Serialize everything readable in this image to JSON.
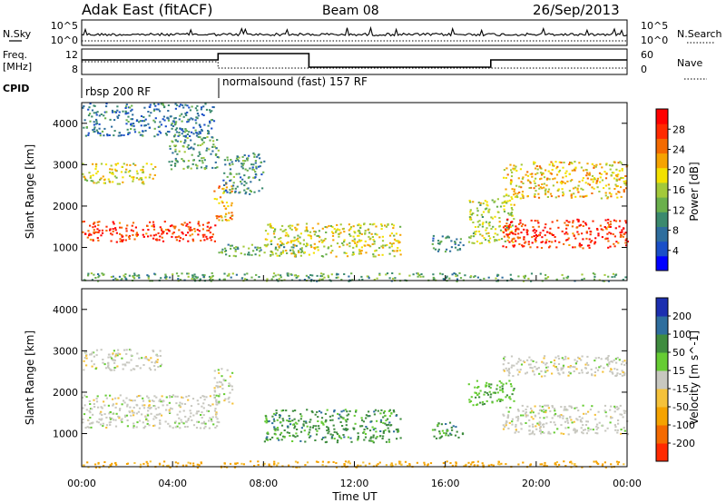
{
  "header": {
    "station": "Adak East (fitACF)",
    "beam": "Beam 08",
    "date": "26/Sep/2013"
  },
  "summary_panel": {
    "left_labels": [
      "N.Sky",
      "Freq.",
      "[MHz]",
      "CPID"
    ],
    "right_labels": [
      "N.Search",
      "Nave"
    ],
    "noise_ticks": [
      "10^5",
      "10^0"
    ],
    "noise_ticks_right": [
      "10^5",
      "10^0"
    ],
    "freq_ticks": [
      "12",
      "8"
    ],
    "nave_ticks": [
      "60",
      "0"
    ],
    "cpid_segments": [
      {
        "label": "rbsp 200 RF",
        "start_hour": 0,
        "end_hour": 6
      },
      {
        "label": "normalsound (fast) 157 RF",
        "start_hour": 6,
        "end_hour": 24
      }
    ],
    "freq_series": [
      {
        "start_hour": 0,
        "end_hour": 6,
        "level": "mid"
      },
      {
        "start_hour": 6,
        "end_hour": 10,
        "level": "high"
      },
      {
        "start_hour": 10,
        "end_hour": 18,
        "level": "low"
      },
      {
        "start_hour": 18,
        "end_hour": 24,
        "level": "mid"
      }
    ]
  },
  "chart_data": [
    {
      "type": "heatmap",
      "panel": "power",
      "ylabel": "Slant Range [km]",
      "ylim": [
        200,
        4500
      ],
      "yticks": [
        1000,
        2000,
        3000,
        4000
      ],
      "colorbar_label": "Power [dB]",
      "colorbar_ticks": [
        "28",
        "24",
        "20",
        "16",
        "12",
        "8",
        "4"
      ],
      "colorbar_range": [
        0,
        32
      ],
      "colors": [
        "#0000ff",
        "#1a4fc8",
        "#2e6e9e",
        "#3b8a6e",
        "#6ab04c",
        "#a3c93a",
        "#f3e100",
        "#f5a300",
        "#f46a00",
        "#ff2a00",
        "#ff0000"
      ],
      "regions": [
        {
          "x": [
            0,
            6
          ],
          "y": [
            1150,
            1650
          ],
          "level": 28
        },
        {
          "x": [
            0,
            3.2
          ],
          "y": [
            2550,
            3050
          ],
          "level": 18
        },
        {
          "x": [
            3.8,
            6
          ],
          "y": [
            2900,
            3700
          ],
          "level": 12
        },
        {
          "x": [
            0,
            5.8
          ],
          "y": [
            3700,
            4500
          ],
          "level": 8
        },
        {
          "x": [
            5.8,
            6.6
          ],
          "y": [
            1650,
            2600
          ],
          "level": 22
        },
        {
          "x": [
            6.2,
            8.0
          ],
          "y": [
            2300,
            3300
          ],
          "level": 10
        },
        {
          "x": [
            6.0,
            9.8
          ],
          "y": [
            800,
            1100
          ],
          "level": 12
        },
        {
          "x": [
            8.0,
            14.0
          ],
          "y": [
            800,
            1600
          ],
          "level": 18
        },
        {
          "x": [
            15.4,
            16.8
          ],
          "y": [
            900,
            1300
          ],
          "level": 10
        },
        {
          "x": [
            17.0,
            19.0
          ],
          "y": [
            1100,
            2200
          ],
          "level": 16
        },
        {
          "x": [
            18.5,
            24
          ],
          "y": [
            1000,
            1700
          ],
          "level": 28
        },
        {
          "x": [
            18.5,
            24
          ],
          "y": [
            2200,
            3100
          ],
          "level": 20
        },
        {
          "x": [
            0,
            24
          ],
          "y": [
            200,
            400
          ],
          "level": 12
        }
      ]
    },
    {
      "type": "heatmap",
      "panel": "velocity",
      "ylabel": "Slant Range [km]",
      "xlabel": "Time UT",
      "ylim": [
        200,
        4500
      ],
      "yticks": [
        1000,
        2000,
        3000,
        4000
      ],
      "xticks": [
        "00:00",
        "04:00",
        "08:00",
        "12:00",
        "16:00",
        "20:00",
        "00:00"
      ],
      "xlim_hours": [
        0,
        24
      ],
      "colorbar_label": "Velocity [m s^-1]",
      "colorbar_ticks": [
        "200",
        "100",
        "50",
        "15",
        "-15",
        "-50",
        "-100",
        "-200"
      ],
      "colors": [
        "#1c2fb0",
        "#2e6e9e",
        "#3f8c3f",
        "#66cc33",
        "#c8c8c0",
        "#f5c23a",
        "#f5a300",
        "#f46a00",
        "#ff2a00"
      ],
      "regions": [
        {
          "x": [
            0,
            6
          ],
          "y": [
            1150,
            1950
          ],
          "velocity": 0
        },
        {
          "x": [
            0,
            3.5
          ],
          "y": [
            2550,
            3050
          ],
          "velocity": 0
        },
        {
          "x": [
            5.8,
            6.6
          ],
          "y": [
            1650,
            2600
          ],
          "velocity": 0
        },
        {
          "x": [
            8.0,
            14.0
          ],
          "y": [
            800,
            1600
          ],
          "velocity": 60
        },
        {
          "x": [
            15.4,
            16.8
          ],
          "y": [
            900,
            1300
          ],
          "velocity": 60
        },
        {
          "x": [
            17.0,
            19.0
          ],
          "y": [
            1700,
            2300
          ],
          "velocity": 50
        },
        {
          "x": [
            18.5,
            24
          ],
          "y": [
            1000,
            1700
          ],
          "velocity": 0
        },
        {
          "x": [
            18.5,
            24
          ],
          "y": [
            2400,
            2900
          ],
          "velocity": 0
        },
        {
          "x": [
            0,
            24
          ],
          "y": [
            200,
            350
          ],
          "velocity": -60
        }
      ]
    }
  ]
}
